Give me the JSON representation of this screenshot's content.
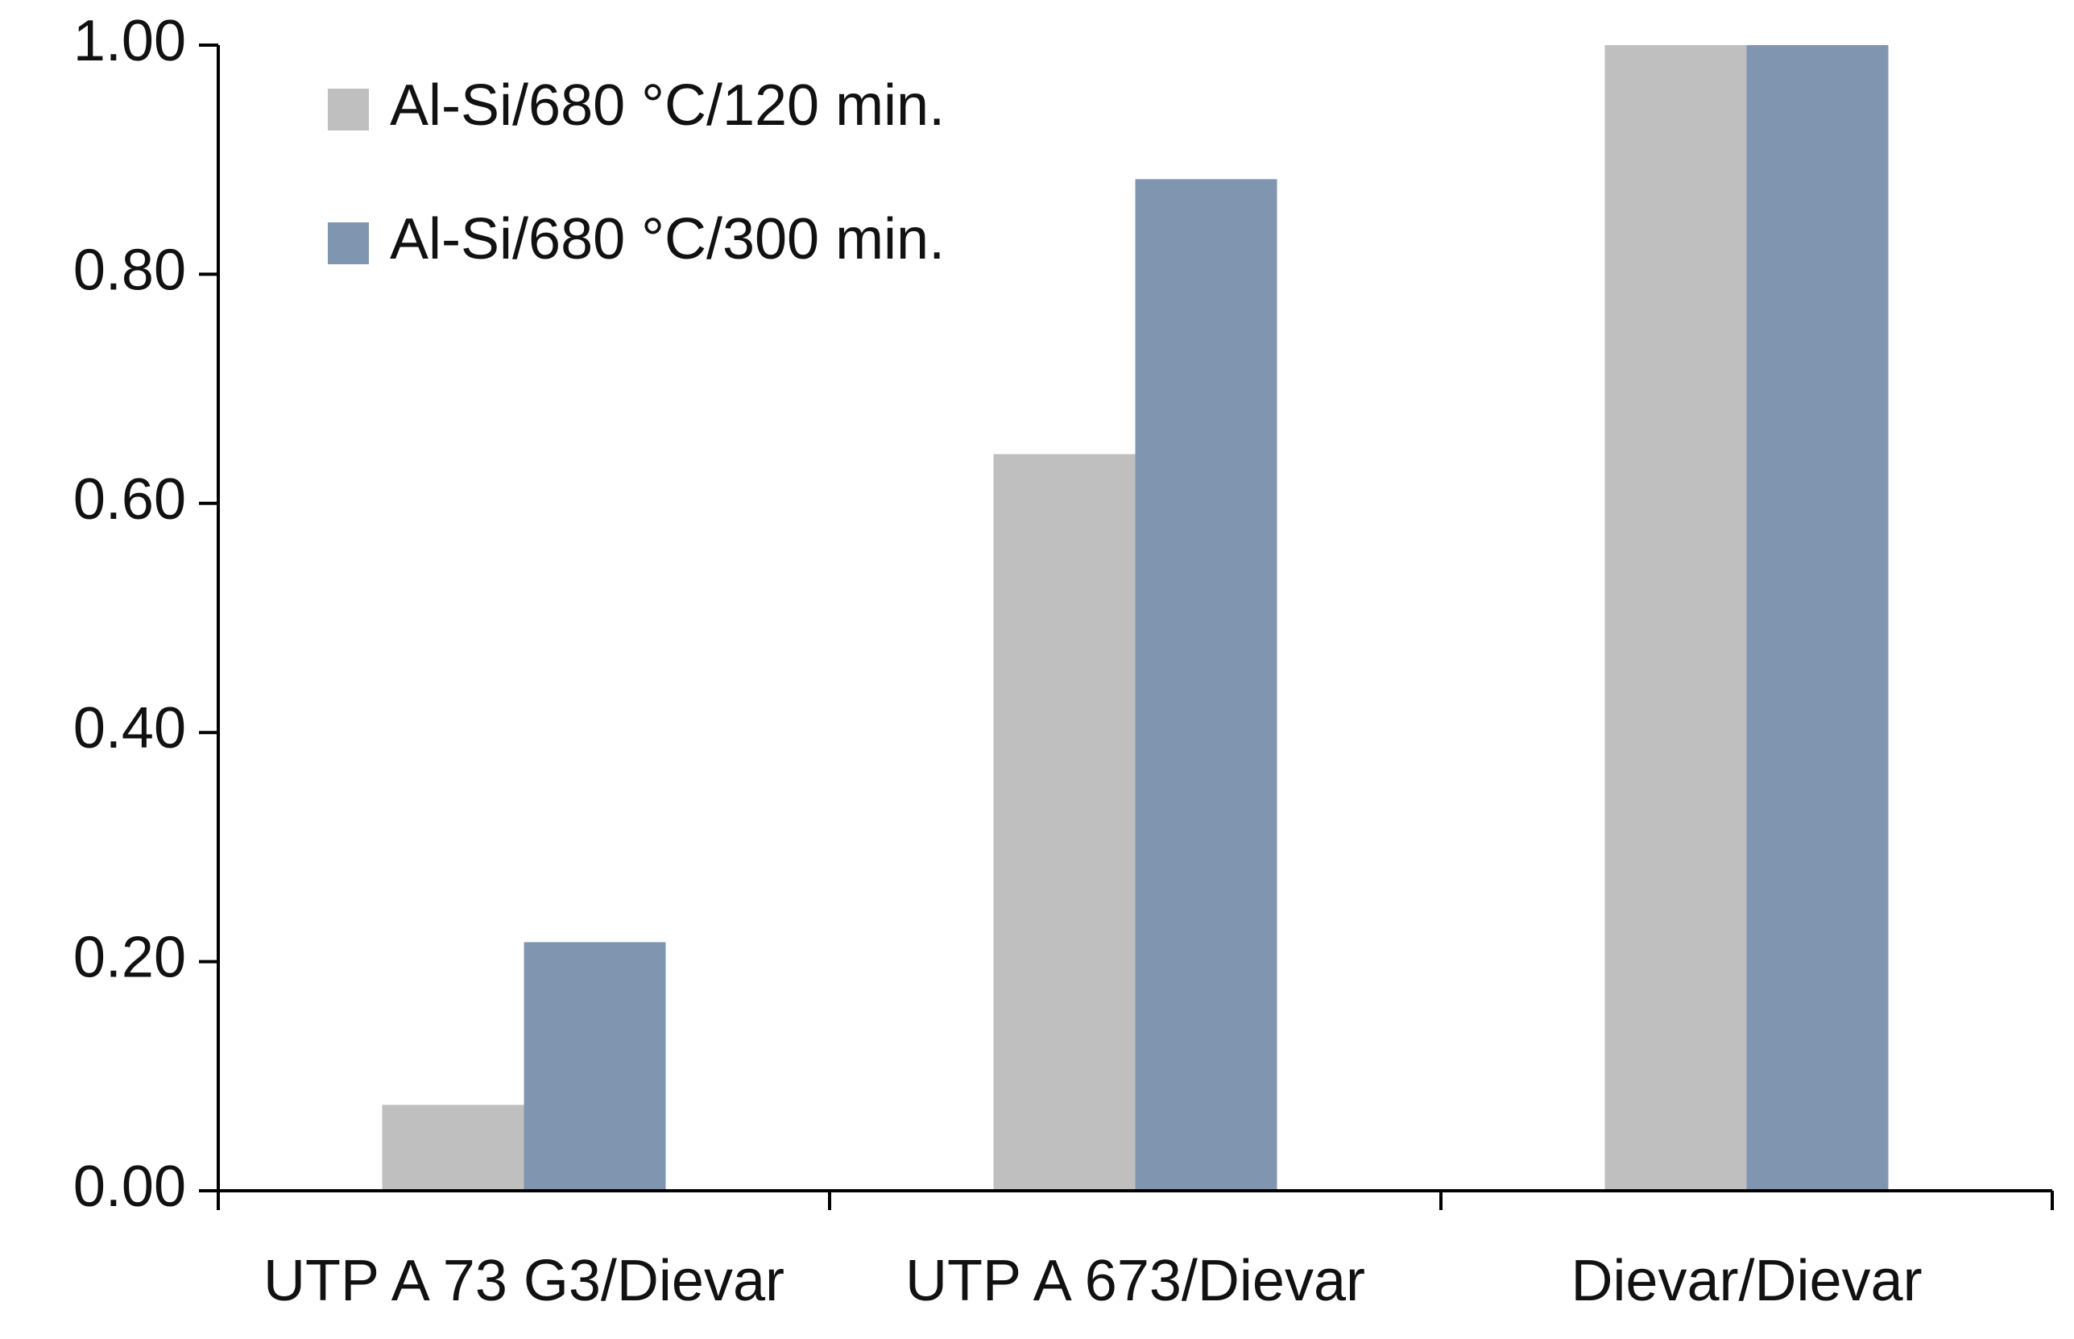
{
  "chart_data": {
    "type": "bar",
    "categories": [
      "UTP A 73 G3/Dievar",
      "UTP A 673/Dievar",
      "Dievar/Dievar"
    ],
    "series": [
      {
        "name": "Al-Si/680 °C/120 min.",
        "color": "#bfbfbf",
        "values": [
          0.075,
          0.643,
          1.0
        ]
      },
      {
        "name": "Al-Si/680 °C/300 min.",
        "color": "#8096b0",
        "values": [
          0.217,
          0.883,
          1.0
        ]
      }
    ],
    "ylim": [
      0,
      1
    ],
    "yticks": [
      {
        "value": 0,
        "label": "0.00"
      },
      {
        "value": 0.2,
        "label": "0.20"
      },
      {
        "value": 0.4,
        "label": "0.40"
      },
      {
        "value": 0.6,
        "label": "0.60"
      },
      {
        "value": 0.8,
        "label": "0.80"
      },
      {
        "value": 1,
        "label": "1.00"
      }
    ],
    "grid": false,
    "legend": "top-left"
  }
}
